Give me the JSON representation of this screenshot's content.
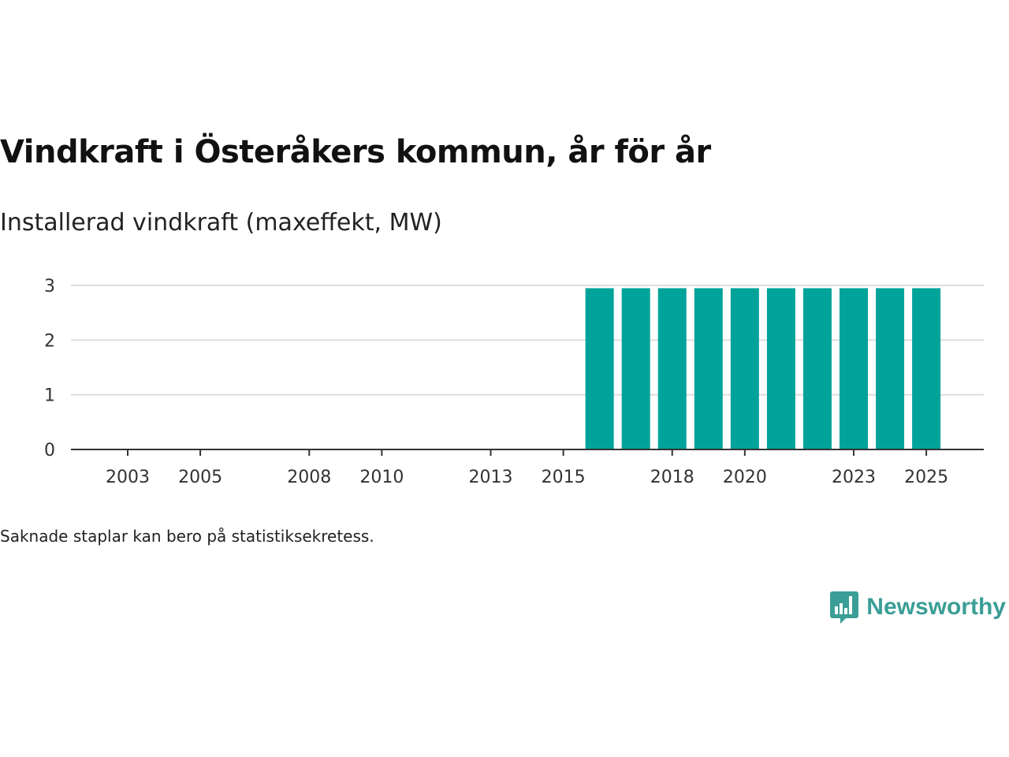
{
  "chart_data": {
    "type": "bar",
    "title": "Vindkraft i Österåkers kommun, år för år",
    "subtitle": "Installerad vindkraft (maxeffekt, MW)",
    "xlabel": "",
    "ylabel": "",
    "categories": [
      "2003",
      "2004",
      "2005",
      "2006",
      "2007",
      "2008",
      "2009",
      "2010",
      "2011",
      "2012",
      "2013",
      "2014",
      "2015",
      "2016",
      "2017",
      "2018",
      "2019",
      "2020",
      "2021",
      "2022",
      "2023",
      "2024",
      "2025"
    ],
    "values": [
      0,
      0,
      0,
      0,
      0,
      0,
      0,
      0,
      0,
      0,
      0,
      0,
      0,
      2.95,
      2.95,
      2.95,
      2.95,
      2.95,
      2.95,
      2.95,
      2.95,
      2.95,
      2.95
    ],
    "x_tick_labels": [
      "2003",
      "2005",
      "2008",
      "2010",
      "2013",
      "2015",
      "2018",
      "2020",
      "2023",
      "2025"
    ],
    "y_ticks": [
      0,
      1,
      2,
      3
    ],
    "ylim": [
      0,
      3
    ],
    "grid": true,
    "legend": "none",
    "bar_color": "#00a39a",
    "note": "Saknade staplar kan bero på statistiksekretess."
  },
  "brand": {
    "name": "Newsworthy",
    "logo_icon": "bar-chart-speech-bubble-icon",
    "color": "#3a9e96"
  }
}
